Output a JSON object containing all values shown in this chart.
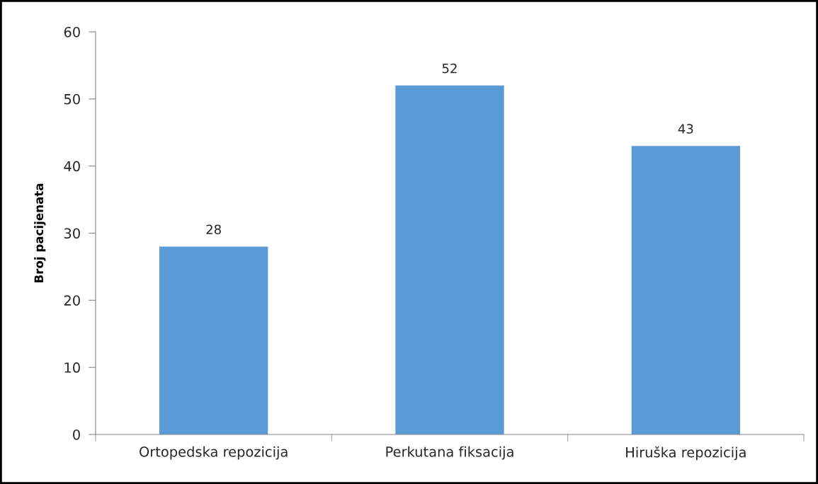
{
  "chart_data": {
    "type": "bar",
    "ylabel": "Broj pacijenata",
    "categories": [
      "Ortopedska repozicija",
      "Perkutana fiksacija",
      "Hiruška repozicija"
    ],
    "values": [
      28,
      52,
      43
    ],
    "color": "#5b9bd5",
    "ylim": [
      0,
      60
    ],
    "yticks": [
      0,
      10,
      20,
      30,
      40,
      50,
      60
    ],
    "grid": false,
    "data_labels": true
  }
}
